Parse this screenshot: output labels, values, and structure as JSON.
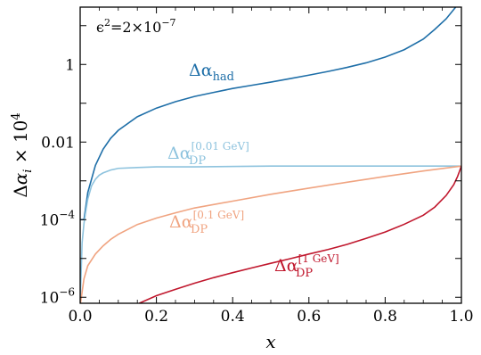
{
  "chart_data": {
    "type": "line",
    "xlabel": "x",
    "ylabel": "Δα_i × 10^4",
    "y_scale": "log",
    "xlim": [
      0.0,
      1.0
    ],
    "ylim": [
      7e-07,
      30
    ],
    "grid": false,
    "x_ticks": [
      "0.0",
      "0.2",
      "0.4",
      "0.6",
      "0.8",
      "1.0"
    ],
    "y_ticks": [
      {
        "value": 1e-06,
        "base": "10",
        "exp": "−6"
      },
      {
        "value": 0.0001,
        "base": "10",
        "exp": "−4"
      },
      {
        "value": 0.01,
        "text": "0.01"
      },
      {
        "value": 1,
        "text": "1"
      }
    ],
    "annotation": {
      "text": "ϵ",
      "sup": "2",
      "rest": "=2×10",
      "exp": "−7"
    },
    "series": [
      {
        "label_main": "Δα",
        "label_sub": "had",
        "label_sup": "",
        "color": "#1f6fa8",
        "points": [
          [
            0.0,
            0.0001
          ],
          [
            0.01,
            0.0001
          ],
          [
            0.02,
            0.0005
          ],
          [
            0.04,
            0.0025
          ],
          [
            0.06,
            0.0065
          ],
          [
            0.08,
            0.0125
          ],
          [
            0.1,
            0.02
          ],
          [
            0.15,
            0.045
          ],
          [
            0.2,
            0.075
          ],
          [
            0.25,
            0.11
          ],
          [
            0.3,
            0.15
          ],
          [
            0.35,
            0.19
          ],
          [
            0.4,
            0.24
          ],
          [
            0.45,
            0.29
          ],
          [
            0.5,
            0.35
          ],
          [
            0.55,
            0.43
          ],
          [
            0.6,
            0.53
          ],
          [
            0.65,
            0.66
          ],
          [
            0.7,
            0.84
          ],
          [
            0.75,
            1.1
          ],
          [
            0.8,
            1.55
          ],
          [
            0.85,
            2.4
          ],
          [
            0.9,
            4.5
          ],
          [
            0.93,
            8.0
          ],
          [
            0.96,
            15
          ],
          [
            0.985,
            30
          ]
        ]
      },
      {
        "label_main": "Δα",
        "label_sub": "DP",
        "label_sup": "[0.01 GeV]",
        "color": "#8ec3de",
        "points": [
          [
            0.0,
            6e-07
          ],
          [
            0.005,
            2.5e-05
          ],
          [
            0.01,
            8e-05
          ],
          [
            0.015,
            0.00017
          ],
          [
            0.02,
            0.00034
          ],
          [
            0.03,
            0.00075
          ],
          [
            0.04,
            0.0011
          ],
          [
            0.05,
            0.0014
          ],
          [
            0.06,
            0.0016
          ],
          [
            0.08,
            0.0019
          ],
          [
            0.1,
            0.0021
          ],
          [
            0.15,
            0.0022
          ],
          [
            0.2,
            0.0023
          ],
          [
            0.3,
            0.0023
          ],
          [
            0.5,
            0.0024
          ],
          [
            0.7,
            0.0024
          ],
          [
            1.0,
            0.0024
          ]
        ]
      },
      {
        "label_main": "Δα",
        "label_sub": "DP",
        "label_sup": "[0.1 GeV]",
        "color": "#f0a481",
        "points": [
          [
            0.0,
            6e-07
          ],
          [
            0.01,
            3e-06
          ],
          [
            0.02,
            6.5e-06
          ],
          [
            0.04,
            1.3e-05
          ],
          [
            0.06,
            2.1e-05
          ],
          [
            0.08,
            3.1e-05
          ],
          [
            0.1,
            4.2e-05
          ],
          [
            0.15,
            7.5e-05
          ],
          [
            0.2,
            0.00011
          ],
          [
            0.25,
            0.00015
          ],
          [
            0.3,
            0.0002
          ],
          [
            0.4,
            0.0003
          ],
          [
            0.5,
            0.00045
          ],
          [
            0.6,
            0.00065
          ],
          [
            0.7,
            0.00092
          ],
          [
            0.8,
            0.0013
          ],
          [
            0.9,
            0.0018
          ],
          [
            1.0,
            0.0024
          ]
        ]
      },
      {
        "label_main": "Δα",
        "label_sub": "DP",
        "label_sup": "[1 GeV]",
        "color": "#c0172d",
        "points": [
          [
            0.155,
            7e-07
          ],
          [
            0.2,
            1.1e-06
          ],
          [
            0.25,
            1.6e-06
          ],
          [
            0.3,
            2.3e-06
          ],
          [
            0.35,
            3.2e-06
          ],
          [
            0.4,
            4.3e-06
          ],
          [
            0.45,
            5.7e-06
          ],
          [
            0.5,
            7.5e-06
          ],
          [
            0.55,
            9.8e-06
          ],
          [
            0.6,
            1.3e-05
          ],
          [
            0.65,
            1.7e-05
          ],
          [
            0.7,
            2.3e-05
          ],
          [
            0.75,
            3.3e-05
          ],
          [
            0.8,
            4.8e-05
          ],
          [
            0.85,
            7.6e-05
          ],
          [
            0.9,
            0.00013
          ],
          [
            0.93,
            0.00021
          ],
          [
            0.96,
            0.00042
          ],
          [
            0.98,
            0.0008
          ],
          [
            0.99,
            0.0013
          ],
          [
            1.0,
            0.0024
          ]
        ]
      }
    ]
  }
}
